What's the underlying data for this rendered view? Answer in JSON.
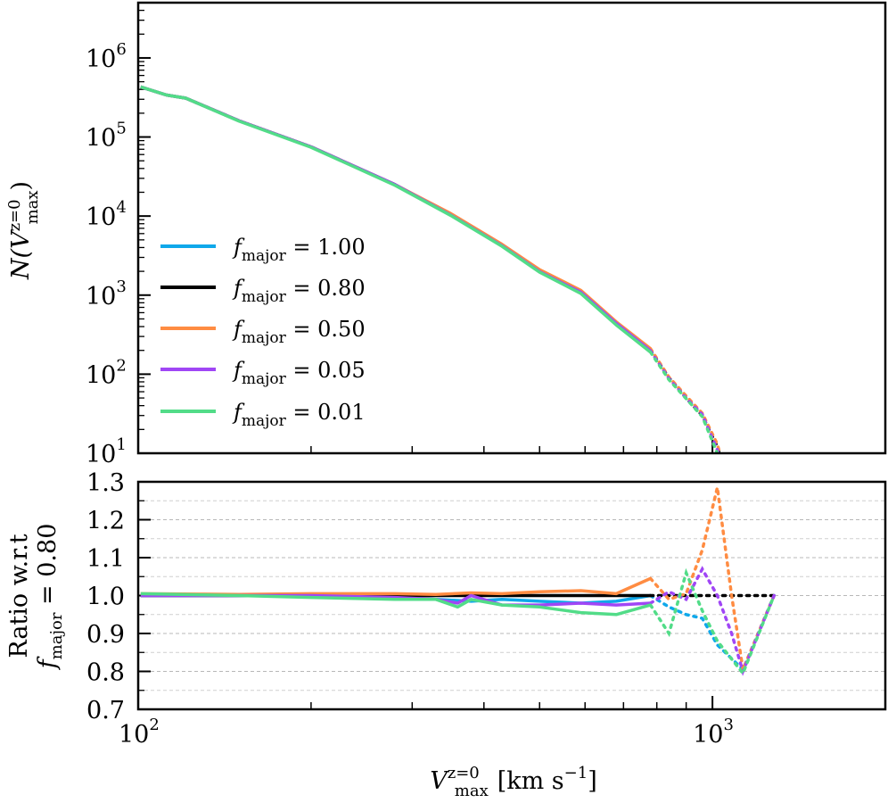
{
  "chart_data": [
    {
      "type": "line",
      "panel": "top",
      "xscale": "log",
      "yscale": "log",
      "xlim": [
        100,
        2000
      ],
      "ylim": [
        10,
        5000000
      ],
      "ytick_labels": [
        {
          "base": "10",
          "exp": "1",
          "value": 10
        },
        {
          "base": "10",
          "exp": "2",
          "value": 100
        },
        {
          "base": "10",
          "exp": "3",
          "value": 1000
        },
        {
          "base": "10",
          "exp": "4",
          "value": 10000
        },
        {
          "base": "10",
          "exp": "5",
          "value": 100000
        },
        {
          "base": "10",
          "exp": "6",
          "value": 1000000
        }
      ],
      "ylabel": {
        "main": "N(V",
        "sup": "z=0",
        "sub": "max",
        "close": ")"
      },
      "legend": {
        "placement": "lower-left",
        "entries": [
          {
            "sym": "f",
            "sub": "major",
            "value": " = 1.00",
            "color": "#0fa8ea"
          },
          {
            "sym": "f",
            "sub": "major",
            "value": " = 0.80",
            "color": "#000000"
          },
          {
            "sym": "f",
            "sub": "major",
            "value": " = 0.50",
            "color": "#ff8c42"
          },
          {
            "sym": "f",
            "sub": "major",
            "value": " = 0.05",
            "color": "#a046f5"
          },
          {
            "sym": "f",
            "sub": "major",
            "value": " = 0.01",
            "color": "#52dc88"
          }
        ]
      },
      "dotted_beyond_x": 780,
      "series": [
        {
          "name": "f_major = 1.00",
          "color": "#0fa8ea",
          "x": [
            101,
            112,
            121,
            150,
            200,
            280,
            350,
            430,
            500,
            590,
            680,
            780,
            840,
            900,
            960,
            1020,
            1050
          ],
          "y": [
            430000,
            340000,
            310000,
            160000,
            75000,
            25000,
            10500,
            4300,
            2000,
            1100,
            450,
            200,
            90,
            50,
            30,
            12,
            6
          ]
        },
        {
          "name": "f_major = 0.80",
          "color": "#000000",
          "x": [
            101,
            112,
            121,
            150,
            200,
            280,
            350,
            430,
            500,
            590,
            680,
            780,
            840,
            900,
            960,
            1020,
            1050
          ],
          "y": [
            430000,
            340000,
            310000,
            160000,
            75000,
            25000,
            10500,
            4300,
            2000,
            1100,
            450,
            200,
            90,
            50,
            30,
            12,
            6
          ]
        },
        {
          "name": "f_major = 0.50",
          "color": "#ff8c42",
          "x": [
            101,
            112,
            121,
            150,
            200,
            280,
            350,
            430,
            500,
            590,
            680,
            780,
            840,
            900,
            960,
            1020,
            1050
          ],
          "y": [
            430000,
            340000,
            310000,
            160000,
            75000,
            25000,
            10800,
            4400,
            2100,
            1150,
            460,
            210,
            92,
            53,
            32,
            13,
            6
          ]
        },
        {
          "name": "f_major = 0.05",
          "color": "#a046f5",
          "x": [
            101,
            112,
            121,
            150,
            200,
            280,
            350,
            430,
            500,
            590,
            680,
            780,
            840,
            900,
            960,
            1020,
            1050
          ],
          "y": [
            430000,
            340000,
            310000,
            160000,
            75000,
            25000,
            10300,
            4200,
            1980,
            1090,
            440,
            198,
            88,
            50,
            31,
            11,
            5
          ]
        },
        {
          "name": "f_major = 0.01",
          "color": "#52dc88",
          "x": [
            101,
            112,
            121,
            150,
            200,
            280,
            350,
            430,
            500,
            590,
            680,
            780,
            840,
            900,
            960,
            1020,
            1050
          ],
          "y": [
            430000,
            340000,
            310000,
            158000,
            74000,
            24500,
            10200,
            4150,
            1950,
            1050,
            420,
            190,
            85,
            49,
            29,
            10,
            5
          ]
        }
      ]
    },
    {
      "type": "line",
      "panel": "bottom",
      "xscale": "log",
      "xlim": [
        100,
        2000
      ],
      "ylim": [
        0.7,
        1.3
      ],
      "yticks": [
        0.7,
        0.8,
        0.9,
        1.0,
        1.1,
        1.2,
        1.3
      ],
      "ytick_labels": [
        "0.7",
        "0.8",
        "0.9",
        "1.0",
        "1.1",
        "1.2",
        "1.3"
      ],
      "xtick_labels": [
        {
          "base": "10",
          "exp": "2",
          "value": 100
        },
        {
          "base": "10",
          "exp": "3",
          "value": 1000
        }
      ],
      "grid": "horizontal-dashed",
      "ylabel_line1": "Ratio w.r.t",
      "ylabel_line2": {
        "sym": "f",
        "sub": "major",
        "value": " = 0.80"
      },
      "xlabel": {
        "main": "V",
        "sup": "z=0",
        "sub": "max",
        "unit": "[km s",
        "unit_sup": "−1",
        "unit_close": "]"
      },
      "dotted_beyond_x": 780,
      "series": [
        {
          "name": "f_major = 1.00",
          "color": "#0fa8ea",
          "x": [
            101,
            150,
            200,
            280,
            330,
            380,
            430,
            500,
            590,
            680,
            780,
            840,
            900,
            960,
            1020,
            1130,
            1280
          ],
          "y": [
            1.0,
            1.0,
            1.0,
            0.995,
            0.99,
            0.985,
            0.99,
            0.985,
            0.98,
            0.985,
            1.0,
            0.97,
            0.95,
            0.94,
            0.87,
            0.805,
            1.0
          ]
        },
        {
          "name": "f_major = 0.80",
          "color": "#000000",
          "x": [
            101,
            150,
            200,
            280,
            330,
            380,
            430,
            500,
            590,
            680,
            780,
            840,
            900,
            960,
            1020,
            1130,
            1280
          ],
          "y": [
            1.0,
            1.0,
            1.0,
            1.0,
            1.0,
            1.0,
            1.0,
            1.0,
            1.0,
            1.0,
            1.0,
            1.0,
            1.0,
            1.0,
            1.0,
            1.0,
            1.0
          ]
        },
        {
          "name": "f_major = 0.50",
          "color": "#ff8c42",
          "x": [
            101,
            150,
            200,
            280,
            330,
            380,
            430,
            500,
            590,
            680,
            780,
            840,
            900,
            960,
            1020,
            1080,
            1130,
            1280
          ],
          "y": [
            1.005,
            1.003,
            1.005,
            1.005,
            1.003,
            1.007,
            1.005,
            1.01,
            1.013,
            1.005,
            1.045,
            0.99,
            1.005,
            1.12,
            1.285,
            1.0,
            0.805,
            1.0
          ]
        },
        {
          "name": "f_major = 0.05",
          "color": "#a046f5",
          "x": [
            101,
            150,
            200,
            280,
            330,
            360,
            380,
            430,
            500,
            590,
            680,
            780,
            840,
            900,
            960,
            1020,
            1080,
            1130,
            1280
          ],
          "y": [
            1.0,
            1.0,
            1.0,
            0.995,
            0.99,
            0.98,
            1.0,
            0.975,
            0.975,
            0.98,
            0.975,
            0.98,
            1.01,
            0.99,
            1.07,
            1.0,
            0.9,
            0.8,
            1.0
          ]
        },
        {
          "name": "f_major = 0.01",
          "color": "#52dc88",
          "x": [
            101,
            150,
            200,
            280,
            330,
            360,
            380,
            430,
            500,
            590,
            680,
            780,
            840,
            900,
            960,
            1020,
            1130,
            1280
          ],
          "y": [
            1.005,
            1.0,
            0.995,
            0.99,
            0.99,
            0.97,
            0.99,
            0.975,
            0.97,
            0.955,
            0.95,
            0.975,
            0.9,
            1.06,
            0.96,
            0.88,
            0.795,
            1.0
          ]
        }
      ]
    }
  ]
}
